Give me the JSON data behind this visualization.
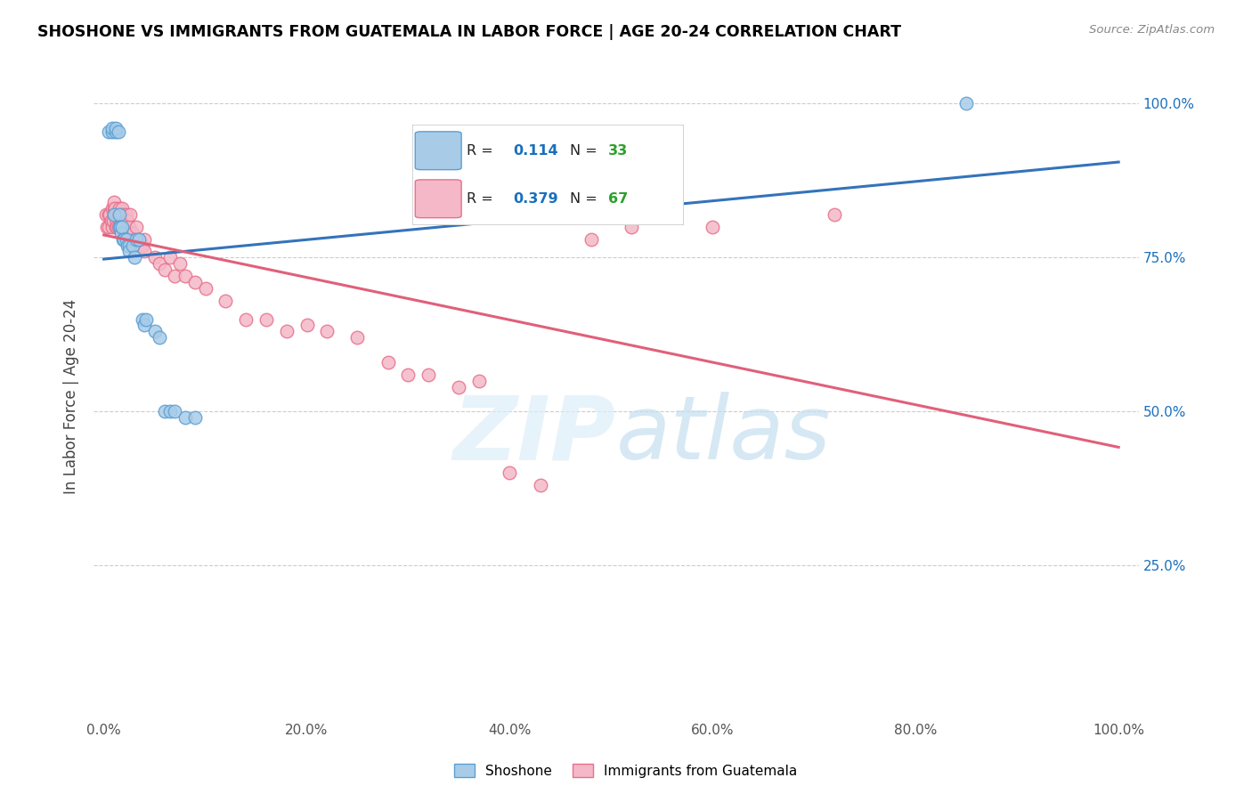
{
  "title": "SHOSHONE VS IMMIGRANTS FROM GUATEMALA IN LABOR FORCE | AGE 20-24 CORRELATION CHART",
  "source_text": "Source: ZipAtlas.com",
  "ylabel": "In Labor Force | Age 20-24",
  "watermark_zip": "ZIP",
  "watermark_atlas": "atlas",
  "blue_r": "0.114",
  "blue_n": "33",
  "pink_r": "0.379",
  "pink_n": "67",
  "blue_scatter_color": "#a8cce8",
  "pink_scatter_color": "#f4b8c8",
  "blue_edge_color": "#5b9fd4",
  "pink_edge_color": "#e8708a",
  "blue_line_color": "#3473ba",
  "pink_line_color": "#e0607a",
  "legend_r_color": "#1a6fbd",
  "legend_n_color": "#2ca02c",
  "x_tick_labels": [
    "0.0%",
    "20.0%",
    "40.0%",
    "60.0%",
    "80.0%",
    "100.0%"
  ],
  "x_tick_vals": [
    0.0,
    0.2,
    0.4,
    0.6,
    0.8,
    1.0
  ],
  "y_tick_labels": [
    "25.0%",
    "50.0%",
    "75.0%",
    "100.0%"
  ],
  "y_tick_vals": [
    0.25,
    0.5,
    0.75,
    1.0
  ],
  "xlim": [
    -0.01,
    1.02
  ],
  "ylim": [
    0.0,
    1.05
  ],
  "shoshone_x": [
    0.005,
    0.008,
    0.008,
    0.01,
    0.012,
    0.012,
    0.014,
    0.015,
    0.015,
    0.016,
    0.017,
    0.018,
    0.019,
    0.02,
    0.022,
    0.023,
    0.025,
    0.025,
    0.028,
    0.03,
    0.032,
    0.035,
    0.038,
    0.04,
    0.042,
    0.05,
    0.055,
    0.06,
    0.065,
    0.07,
    0.08,
    0.09,
    0.85
  ],
  "shoshone_y": [
    0.955,
    0.955,
    0.96,
    0.82,
    0.955,
    0.96,
    0.955,
    0.82,
    0.8,
    0.8,
    0.79,
    0.8,
    0.78,
    0.78,
    0.78,
    0.77,
    0.77,
    0.76,
    0.77,
    0.75,
    0.78,
    0.78,
    0.65,
    0.64,
    0.65,
    0.63,
    0.62,
    0.5,
    0.5,
    0.5,
    0.49,
    0.49,
    1.0
  ],
  "guatemala_x": [
    0.002,
    0.003,
    0.005,
    0.005,
    0.006,
    0.007,
    0.008,
    0.008,
    0.009,
    0.01,
    0.01,
    0.01,
    0.011,
    0.012,
    0.012,
    0.013,
    0.013,
    0.014,
    0.014,
    0.015,
    0.015,
    0.016,
    0.016,
    0.017,
    0.018,
    0.018,
    0.019,
    0.02,
    0.02,
    0.022,
    0.023,
    0.025,
    0.026,
    0.028,
    0.03,
    0.032,
    0.035,
    0.038,
    0.04,
    0.04,
    0.05,
    0.055,
    0.06,
    0.065,
    0.07,
    0.075,
    0.08,
    0.09,
    0.1,
    0.12,
    0.14,
    0.16,
    0.18,
    0.2,
    0.22,
    0.25,
    0.28,
    0.3,
    0.32,
    0.35,
    0.37,
    0.4,
    0.43,
    0.48,
    0.52,
    0.6,
    0.72
  ],
  "guatemala_y": [
    0.82,
    0.8,
    0.82,
    0.8,
    0.82,
    0.81,
    0.83,
    0.8,
    0.81,
    0.83,
    0.84,
    0.82,
    0.83,
    0.82,
    0.8,
    0.81,
    0.8,
    0.82,
    0.8,
    0.83,
    0.82,
    0.81,
    0.8,
    0.82,
    0.83,
    0.81,
    0.82,
    0.81,
    0.8,
    0.82,
    0.81,
    0.8,
    0.82,
    0.79,
    0.78,
    0.8,
    0.78,
    0.77,
    0.78,
    0.76,
    0.75,
    0.74,
    0.73,
    0.75,
    0.72,
    0.74,
    0.72,
    0.71,
    0.7,
    0.68,
    0.65,
    0.65,
    0.63,
    0.64,
    0.63,
    0.62,
    0.58,
    0.56,
    0.56,
    0.54,
    0.55,
    0.4,
    0.38,
    0.78,
    0.8,
    0.8,
    0.82
  ]
}
